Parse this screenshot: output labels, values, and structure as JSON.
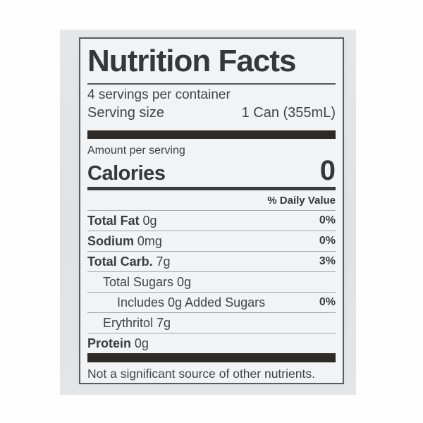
{
  "page": {
    "background_color": "#fdfdfd",
    "photo_background_color": "#e2e4e6",
    "label_background_color": "#f2f3f4",
    "text_color": "#3a3b3c",
    "bar_color": "#2d2a27",
    "hairline_color": "#a2a6a9",
    "border_color": "#595b5e"
  },
  "label": {
    "title": "Nutrition Facts",
    "servings_per_container": "4 servings per container",
    "serving_size_label": "Serving size",
    "serving_size_value": "1 Can (355mL)",
    "amount_per_serving": "Amount per serving",
    "calories_label": "Calories",
    "calories_value": "0",
    "daily_value_header": "% Daily Value",
    "rows": [
      {
        "bold": "Total Fat",
        "rest": "0g",
        "dv": "0%"
      },
      {
        "bold": "Sodium",
        "rest": "0mg",
        "dv": "0%"
      },
      {
        "bold": "Total Carb.",
        "rest": "7g",
        "dv": "3%"
      },
      {
        "bold": "",
        "rest": "Total Sugars 0g",
        "dv": ""
      },
      {
        "bold": "",
        "rest": "Includes 0g Added Sugars",
        "dv": "0%"
      },
      {
        "bold": "",
        "rest": "Erythritol 7g",
        "dv": ""
      },
      {
        "bold": "Protein",
        "rest": "0g",
        "dv": ""
      }
    ],
    "footnote": "Not a significant source of other nutrients."
  }
}
